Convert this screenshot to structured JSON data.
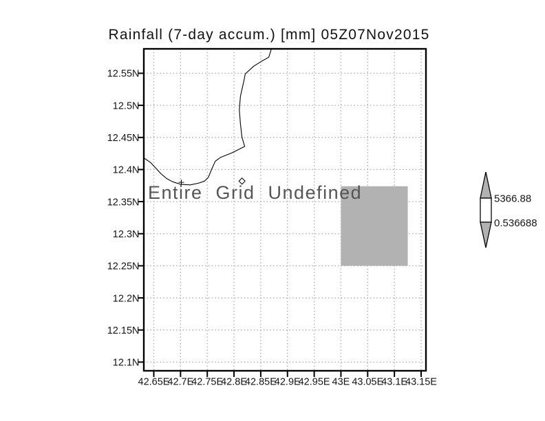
{
  "title": "Rainfall (7-day accum.) [mm] 05Z07Nov2015",
  "chart_data": {
    "type": "map",
    "title": "Rainfall (7-day accum.) [mm] 05Z07Nov2015",
    "overlay_text": "Entire Grid Undefined",
    "grid": "dotted",
    "lon_range": [
      42.629,
      43.16
    ],
    "lat_range": [
      12.086,
      12.588
    ],
    "x_ticks": [
      {
        "lon": 42.65,
        "label": "42.65E"
      },
      {
        "lon": 42.7,
        "label": "42.7E"
      },
      {
        "lon": 42.75,
        "label": "42.75E"
      },
      {
        "lon": 42.8,
        "label": "42.8E"
      },
      {
        "lon": 42.85,
        "label": "42.85E"
      },
      {
        "lon": 42.9,
        "label": "42.9E"
      },
      {
        "lon": 42.95,
        "label": "42.95E"
      },
      {
        "lon": 43.0,
        "label": "43E"
      },
      {
        "lon": 43.05,
        "label": "43.05E"
      },
      {
        "lon": 43.1,
        "label": "43.1E"
      },
      {
        "lon": 43.15,
        "label": "43.15E"
      }
    ],
    "y_ticks": [
      {
        "lat": 12.55,
        "label": "12.55N"
      },
      {
        "lat": 12.5,
        "label": "12.5N"
      },
      {
        "lat": 12.45,
        "label": "12.45N"
      },
      {
        "lat": 12.4,
        "label": "12.4N"
      },
      {
        "lat": 12.35,
        "label": "12.35N"
      },
      {
        "lat": 12.3,
        "label": "12.3N"
      },
      {
        "lat": 12.25,
        "label": "12.25N"
      },
      {
        "lat": 12.2,
        "label": "12.2N"
      },
      {
        "lat": 12.15,
        "label": "12.15N"
      },
      {
        "lat": 12.1,
        "label": "12.1N"
      }
    ],
    "coastline_lonlat": [
      [
        42.87,
        12.588
      ],
      [
        42.865,
        12.575
      ],
      [
        42.852,
        12.569
      ],
      [
        42.837,
        12.561
      ],
      [
        42.821,
        12.549
      ],
      [
        42.819,
        12.54
      ],
      [
        42.812,
        12.514
      ],
      [
        42.81,
        12.493
      ],
      [
        42.812,
        12.471
      ],
      [
        42.815,
        12.45
      ],
      [
        42.82,
        12.436
      ],
      [
        42.796,
        12.426
      ],
      [
        42.775,
        12.419
      ],
      [
        42.765,
        12.413
      ],
      [
        42.758,
        12.4
      ],
      [
        42.752,
        12.388
      ],
      [
        42.745,
        12.382
      ],
      [
        42.735,
        12.379
      ],
      [
        42.718,
        12.376
      ],
      [
        42.7,
        12.377
      ],
      [
        42.685,
        12.381
      ],
      [
        42.674,
        12.386
      ],
      [
        42.664,
        12.393
      ],
      [
        42.654,
        12.402
      ],
      [
        42.644,
        12.411
      ],
      [
        42.628,
        12.42
      ]
    ],
    "markers": [
      {
        "lon": 42.7015,
        "lat": 12.38,
        "shape": "plus"
      },
      {
        "lon": 42.815,
        "lat": 12.382,
        "shape": "diamond"
      }
    ],
    "undefined_region": {
      "lon_min": 43.0,
      "lon_max": 43.125,
      "lat_min": 12.25,
      "lat_max": 12.374
    },
    "colorbar": {
      "max_label": "5366.88",
      "min_label": "0.536688"
    },
    "colors": {
      "undefined_region_fill": "#b2b2b2",
      "colorbar_arrow_fill": "#b2b2b2",
      "colorbar_range_fill": "#ffffff",
      "grid_line": "#a9a9a9",
      "coastline": "#000000",
      "overlay_text": "#555555",
      "axis_text": "#161616",
      "background": "#ffffff"
    }
  }
}
